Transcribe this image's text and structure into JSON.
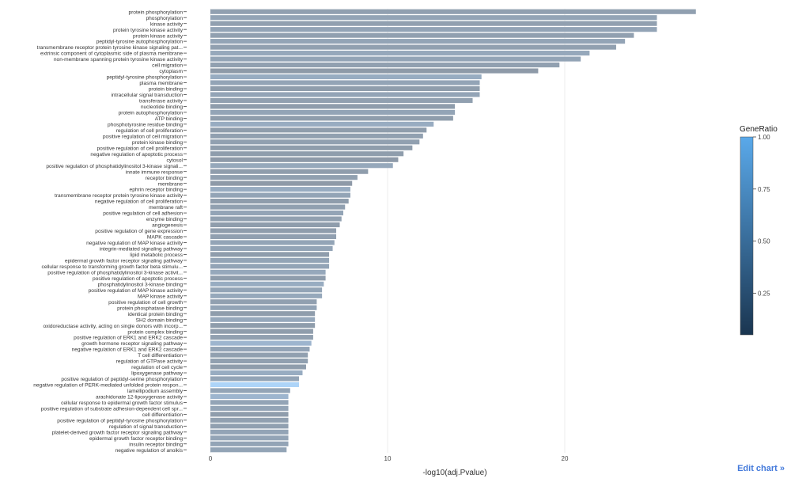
{
  "chart_data": {
    "type": "bar",
    "orientation": "horizontal",
    "xlabel": "-log10(adj.Pvalue)",
    "xlim": [
      0,
      27.5
    ],
    "xticks": [
      0,
      10,
      20
    ],
    "colorbar": {
      "title": "GeneRatio",
      "ticks": [
        0.25,
        0.5,
        0.75,
        1.0
      ],
      "tick_labels": [
        "0.25",
        "0.50",
        "0.75",
        "1.00"
      ],
      "range": [
        0.05,
        1.0
      ],
      "color_low": "#1a3550",
      "color_high": "#5aa9ea"
    },
    "categories": [
      "protein phosphorylation",
      "phosphorylation",
      "kinase activity",
      "protein tyrosine kinase activity",
      "protein kinase activity",
      "peptidyl-tyrosine autophosphorylation",
      "transmembrane receptor protein tyrosine kinase signaling pat...",
      "extrinsic component of cytoplasmic side of plasma membrane",
      "non-membrane spanning protein tyrosine kinase activity",
      "cell migration",
      "cytoplasm",
      "peptidyl-tyrosine phosphorylation",
      "plasma membrane",
      "protein binding",
      "intracellular signal transduction",
      "transferase activity",
      "nucleotide binding",
      "protein autophosphorylation",
      "ATP binding",
      "phosphotyrosine residue binding",
      "regulation of cell proliferation",
      "positive regulation of cell migration",
      "protein kinase binding",
      "positive regulation of cell proliferation",
      "negative regulation of apoptotic process",
      "cytosol",
      "positive regulation of phosphatidylinositol 3-kinase signali...",
      "innate immune response",
      "receptor binding",
      "membrane",
      "ephrin receptor binding",
      "transmembrane receptor protein tyrosine kinase activity",
      "negative regulation of cell proliferation",
      "membrane raft",
      "positive regulation of cell adhesion",
      "enzyme binding",
      "angiogenesis",
      "positive regulation of gene expression",
      "MAPK cascade",
      "negative regulation of MAP kinase activity",
      "integrin-mediated signaling pathway",
      "lipid metabolic process",
      "epidermal growth factor receptor signaling pathway",
      "cellular response to transforming growth factor beta stimulu...",
      "positive regulation of phosphatidylinositol 3-kinase activit...",
      "positive regulation of apoptotic process",
      "phosphatidylinositol 3-kinase binding",
      "positive regulation of MAP kinase activity",
      "MAP kinase activity",
      "positive regulation of cell growth",
      "protein phosphatase binding",
      "identical protein binding",
      "SH2 domain binding",
      "oxidoreductase activity, acting on single donors with incorp...",
      "protein complex binding",
      "positive regulation of ERK1 and ERK2 cascade",
      "growth hormone receptor signaling pathway",
      "negative regulation of ERK1 and ERK2 cascade",
      "T cell differentiation",
      "regulation of GTPase activity",
      "regulation of cell cycle",
      "lipoxygenase pathway",
      "positive regulation of peptidyl-serine phosphorylation",
      "negative regulation of PERK-mediated unfolded protein respon...",
      "lamellipodium assembly",
      "arachidonate 12-lipoxygenase activity",
      "cellular response to epidermal growth factor stimulus",
      "positive regulation of substrate adhesion-dependent cell spr...",
      "cell differentiation",
      "positive regulation of peptidyl-tyrosine phosphorylation",
      "regulation of signal transduction",
      "platelet-derived growth factor receptor signaling pathway",
      "epidermal growth factor receptor binding",
      "insulin receptor binding",
      "negative regulation of anoikis"
    ],
    "values": [
      27.4,
      25.2,
      25.2,
      25.2,
      23.9,
      23.4,
      22.9,
      21.4,
      20.9,
      19.7,
      18.5,
      15.3,
      15.2,
      15.2,
      15.2,
      14.8,
      13.8,
      13.8,
      13.7,
      12.6,
      12.2,
      12.0,
      11.8,
      11.4,
      10.9,
      10.6,
      10.3,
      8.9,
      8.3,
      8.0,
      7.9,
      7.9,
      7.8,
      7.6,
      7.5,
      7.4,
      7.3,
      7.1,
      7.1,
      7.0,
      6.9,
      6.7,
      6.7,
      6.7,
      6.5,
      6.5,
      6.4,
      6.3,
      6.3,
      6.0,
      6.0,
      5.9,
      5.9,
      5.9,
      5.8,
      5.8,
      5.7,
      5.6,
      5.5,
      5.5,
      5.4,
      5.2,
      5.0,
      5.0,
      4.5,
      4.4,
      4.4,
      4.4,
      4.4,
      4.4,
      4.4,
      4.4,
      4.4,
      4.4,
      4.3
    ],
    "gene_ratio": [
      0.4,
      0.45,
      0.4,
      0.45,
      0.4,
      0.45,
      0.4,
      0.5,
      0.45,
      0.4,
      0.3,
      0.55,
      0.45,
      0.35,
      0.45,
      0.4,
      0.35,
      0.45,
      0.35,
      0.55,
      0.35,
      0.4,
      0.4,
      0.35,
      0.35,
      0.3,
      0.5,
      0.35,
      0.4,
      0.3,
      0.55,
      0.45,
      0.35,
      0.4,
      0.45,
      0.4,
      0.35,
      0.35,
      0.4,
      0.45,
      0.45,
      0.35,
      0.45,
      0.45,
      0.5,
      0.35,
      0.55,
      0.45,
      0.5,
      0.4,
      0.45,
      0.35,
      0.5,
      0.35,
      0.35,
      0.4,
      0.65,
      0.45,
      0.4,
      0.4,
      0.35,
      0.55,
      0.45,
      0.95,
      0.45,
      0.65,
      0.45,
      0.45,
      0.35,
      0.4,
      0.4,
      0.45,
      0.45,
      0.45,
      0.45
    ]
  },
  "ui": {
    "edit_link": "Edit chart »"
  }
}
